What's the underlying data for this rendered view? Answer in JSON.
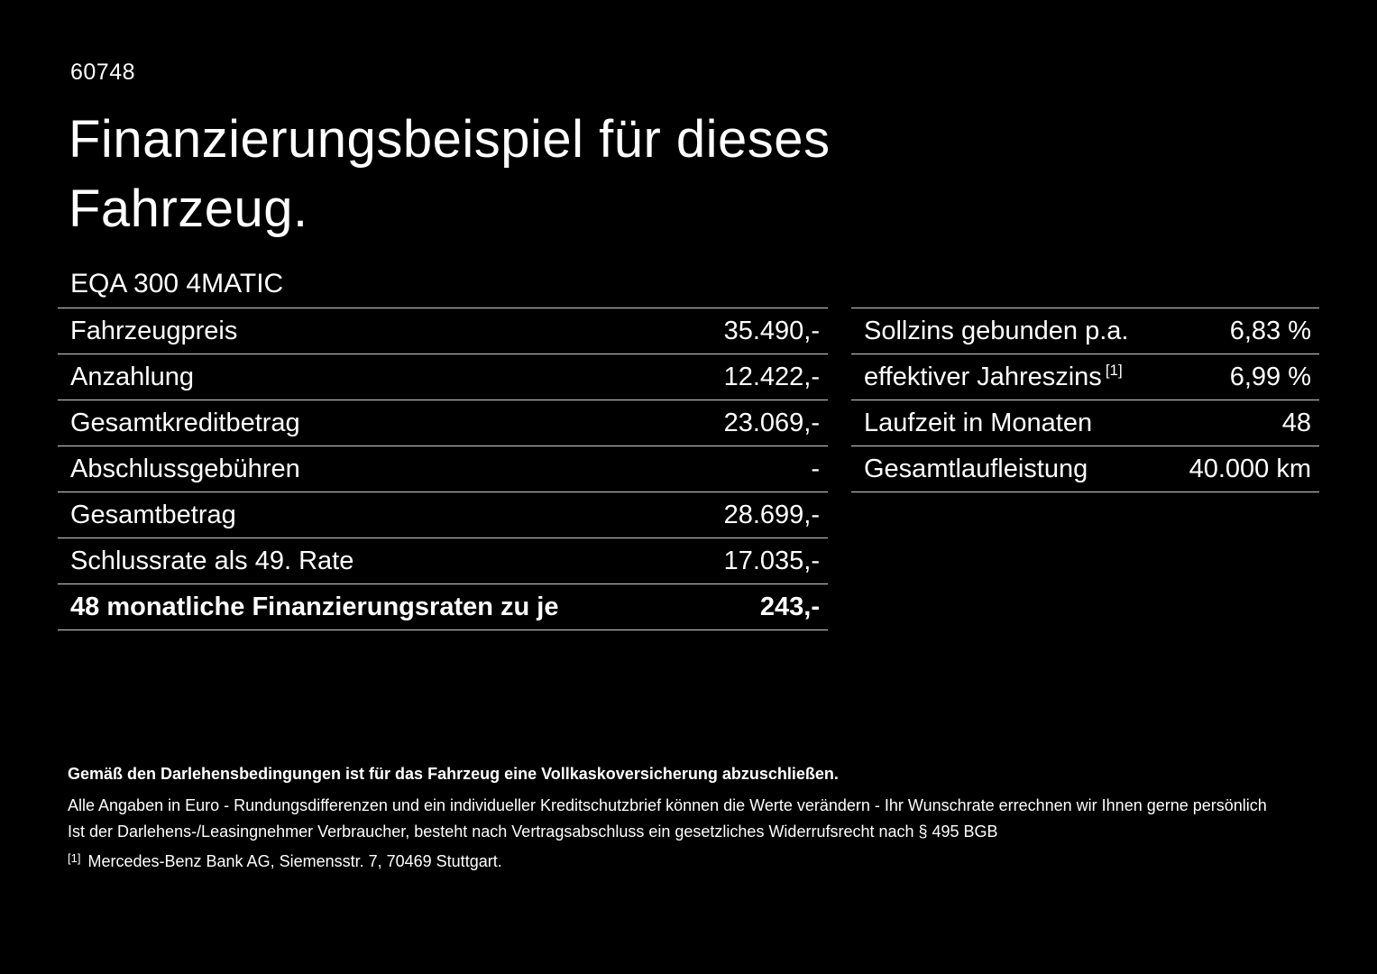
{
  "header": {
    "code": "60748",
    "title": "Finanzierungsbeispiel für dieses Fahrzeug."
  },
  "vehicle": {
    "model": "EQA 300 4MATIC"
  },
  "tables": {
    "financing": {
      "rows": [
        {
          "label": "Fahrzeugpreis",
          "value": "35.490,-"
        },
        {
          "label": "Anzahlung",
          "value": "12.422,-"
        },
        {
          "label": "Gesamtkreditbetrag",
          "value": "23.069,-"
        },
        {
          "label": "Abschlussgebühren",
          "value": "-"
        },
        {
          "label": "Gesamtbetrag",
          "value": "28.699,-"
        },
        {
          "label": "Schlussrate als 49. Rate",
          "value": "17.035,-"
        },
        {
          "label": "48 monatliche Finanzierungsraten zu je",
          "value": "243,-"
        }
      ]
    },
    "conditions": {
      "rows": [
        {
          "label": "Sollzins gebunden p.a.",
          "value": "6,83 %"
        },
        {
          "label": "effektiver Jahreszins",
          "sup": "[1]",
          "value": "6,99 %"
        },
        {
          "label": "Laufzeit in Monaten",
          "value": "48"
        },
        {
          "label": "Gesamtlaufleistung",
          "value": "40.000 km"
        }
      ]
    }
  },
  "footer": {
    "bold_note": "Gemäß den Darlehensbedingungen ist für das Fahrzeug eine Vollkaskoversicherung abzuschließen.",
    "note_line1": "Alle Angaben in Euro - Rundungsdifferenzen und ein individueller Kreditschutzbrief können die Werte verändern - Ihr Wunschrate errechnen wir Ihnen gerne persönlich",
    "note_line2": "Ist der Darlehens-/Leasingnehmer Verbraucher, besteht nach Vertragsabschluss ein gesetzliches Widerrufsrecht nach § 495 BGB",
    "footnote_marker": "[1]",
    "footnote_text": "Mercedes-Benz Bank AG, Siemensstr. 7, 70469 Stuttgart."
  },
  "colors": {
    "background": "#000000",
    "text": "#ffffff",
    "divider": "#cfcfcf"
  }
}
